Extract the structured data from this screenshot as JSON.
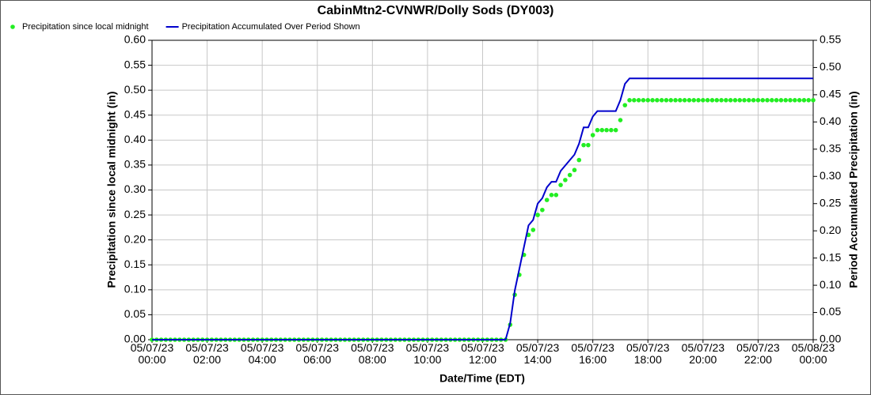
{
  "chart_data": {
    "type": "line",
    "title": "CabinMtn2-CVNWR/Dolly Sods (DY003)",
    "xlabel": "Date/Time (EDT)",
    "ylabel": "Precipitation since local midnight (in)",
    "y2label": "Period Accumulated Precipitation (in)",
    "grid": true,
    "legend": "top-left",
    "xlim": [
      0,
      1440
    ],
    "xticks": [
      {
        "value": 0,
        "label": "05/07/23\n00:00"
      },
      {
        "value": 120,
        "label": "05/07/23\n02:00"
      },
      {
        "value": 240,
        "label": "05/07/23\n04:00"
      },
      {
        "value": 360,
        "label": "05/07/23\n06:00"
      },
      {
        "value": 480,
        "label": "05/07/23\n08:00"
      },
      {
        "value": 600,
        "label": "05/07/23\n10:00"
      },
      {
        "value": 720,
        "label": "05/07/23\n12:00"
      },
      {
        "value": 840,
        "label": "05/07/23\n14:00"
      },
      {
        "value": 960,
        "label": "05/07/23\n16:00"
      },
      {
        "value": 1080,
        "label": "05/07/23\n18:00"
      },
      {
        "value": 1200,
        "label": "05/07/23\n20:00"
      },
      {
        "value": 1320,
        "label": "05/07/23\n22:00"
      },
      {
        "value": 1440,
        "label": "05/08/23\n00:00"
      }
    ],
    "ylim": [
      0,
      0.6
    ],
    "yticks": [
      {
        "value": 0,
        "label": "0.00"
      },
      {
        "value": 0.05,
        "label": "0.05"
      },
      {
        "value": 0.1,
        "label": "0.10"
      },
      {
        "value": 0.15,
        "label": "0.15"
      },
      {
        "value": 0.2,
        "label": "0.20"
      },
      {
        "value": 0.25,
        "label": "0.25"
      },
      {
        "value": 0.3,
        "label": "0.30"
      },
      {
        "value": 0.35,
        "label": "0.35"
      },
      {
        "value": 0.4,
        "label": "0.40"
      },
      {
        "value": 0.45,
        "label": "0.45"
      },
      {
        "value": 0.5,
        "label": "0.50"
      },
      {
        "value": 0.55,
        "label": "0.55"
      },
      {
        "value": 0.6,
        "label": "0.60"
      }
    ],
    "y2lim": [
      0,
      0.55
    ],
    "y2ticks": [
      {
        "value": 0,
        "label": "0.00"
      },
      {
        "value": 0.05,
        "label": "0.05"
      },
      {
        "value": 0.1,
        "label": "0.10"
      },
      {
        "value": 0.15,
        "label": "0.15"
      },
      {
        "value": 0.2,
        "label": "0.20"
      },
      {
        "value": 0.25,
        "label": "0.25"
      },
      {
        "value": 0.3,
        "label": "0.30"
      },
      {
        "value": 0.35,
        "label": "0.35"
      },
      {
        "value": 0.4,
        "label": "0.40"
      },
      {
        "value": 0.45,
        "label": "0.45"
      },
      {
        "value": 0.5,
        "label": "0.50"
      },
      {
        "value": 0.55,
        "label": "0.55"
      }
    ],
    "x": [
      0,
      10,
      20,
      30,
      40,
      50,
      60,
      70,
      80,
      90,
      100,
      110,
      120,
      130,
      140,
      150,
      160,
      170,
      180,
      190,
      200,
      210,
      220,
      230,
      240,
      250,
      260,
      270,
      280,
      290,
      300,
      310,
      320,
      330,
      340,
      350,
      360,
      370,
      380,
      390,
      400,
      410,
      420,
      430,
      440,
      450,
      460,
      470,
      480,
      490,
      500,
      510,
      520,
      530,
      540,
      550,
      560,
      570,
      580,
      590,
      600,
      610,
      620,
      630,
      640,
      650,
      660,
      670,
      680,
      690,
      700,
      710,
      720,
      730,
      740,
      750,
      760,
      770,
      780,
      790,
      800,
      810,
      820,
      830,
      840,
      850,
      860,
      870,
      880,
      890,
      900,
      910,
      920,
      930,
      940,
      950,
      960,
      970,
      980,
      990,
      1000,
      1010,
      1020,
      1030,
      1040,
      1050,
      1060,
      1070,
      1080,
      1090,
      1100,
      1110,
      1120,
      1130,
      1140,
      1150,
      1160,
      1170,
      1180,
      1190,
      1200,
      1210,
      1220,
      1230,
      1240,
      1250,
      1260,
      1270,
      1280,
      1290,
      1300,
      1310,
      1320,
      1330,
      1340,
      1350,
      1360,
      1370,
      1380,
      1390,
      1400,
      1410,
      1420,
      1430,
      1440
    ],
    "series": [
      {
        "name": "Precipitation since local midnight",
        "color": "#22ee22",
        "marker": "dot",
        "axis": "y",
        "values": [
          0,
          0,
          0,
          0,
          0,
          0,
          0,
          0,
          0,
          0,
          0,
          0,
          0,
          0,
          0,
          0,
          0,
          0,
          0,
          0,
          0,
          0,
          0,
          0,
          0,
          0,
          0,
          0,
          0,
          0,
          0,
          0,
          0,
          0,
          0,
          0,
          0,
          0,
          0,
          0,
          0,
          0,
          0,
          0,
          0,
          0,
          0,
          0,
          0,
          0,
          0,
          0,
          0,
          0,
          0,
          0,
          0,
          0,
          0,
          0,
          0,
          0,
          0,
          0,
          0,
          0,
          0,
          0,
          0,
          0,
          0,
          0,
          0,
          0,
          0,
          0,
          0,
          0,
          0.03,
          0.09,
          0.13,
          0.17,
          0.21,
          0.22,
          0.25,
          0.26,
          0.28,
          0.29,
          0.29,
          0.31,
          0.32,
          0.33,
          0.34,
          0.36,
          0.39,
          0.39,
          0.41,
          0.42,
          0.42,
          0.42,
          0.42,
          0.42,
          0.44,
          0.47,
          0.48,
          0.48,
          0.48,
          0.48,
          0.48,
          0.48,
          0.48,
          0.48,
          0.48,
          0.48,
          0.48,
          0.48,
          0.48,
          0.48,
          0.48,
          0.48,
          0.48,
          0.48,
          0.48,
          0.48,
          0.48,
          0.48,
          0.48,
          0.48,
          0.48,
          0.48,
          0.48,
          0.48,
          0.48,
          0.48,
          0.48,
          0.48,
          0.48,
          0.48,
          0.48,
          0.48,
          0.48,
          0.48,
          0.48,
          0.48,
          0.48
        ]
      },
      {
        "name": "Precipitation Accumulated Over Period Shown",
        "color": "#0000cc",
        "marker": "line",
        "axis": "y2",
        "values": [
          0,
          0,
          0,
          0,
          0,
          0,
          0,
          0,
          0,
          0,
          0,
          0,
          0,
          0,
          0,
          0,
          0,
          0,
          0,
          0,
          0,
          0,
          0,
          0,
          0,
          0,
          0,
          0,
          0,
          0,
          0,
          0,
          0,
          0,
          0,
          0,
          0,
          0,
          0,
          0,
          0,
          0,
          0,
          0,
          0,
          0,
          0,
          0,
          0,
          0,
          0,
          0,
          0,
          0,
          0,
          0,
          0,
          0,
          0,
          0,
          0,
          0,
          0,
          0,
          0,
          0,
          0,
          0,
          0,
          0,
          0,
          0,
          0,
          0,
          0,
          0,
          0,
          0,
          0.03,
          0.09,
          0.13,
          0.17,
          0.21,
          0.22,
          0.25,
          0.26,
          0.28,
          0.29,
          0.29,
          0.31,
          0.32,
          0.33,
          0.34,
          0.36,
          0.39,
          0.39,
          0.41,
          0.42,
          0.42,
          0.42,
          0.42,
          0.42,
          0.44,
          0.47,
          0.48,
          0.48,
          0.48,
          0.48,
          0.48,
          0.48,
          0.48,
          0.48,
          0.48,
          0.48,
          0.48,
          0.48,
          0.48,
          0.48,
          0.48,
          0.48,
          0.48,
          0.48,
          0.48,
          0.48,
          0.48,
          0.48,
          0.48,
          0.48,
          0.48,
          0.48,
          0.48,
          0.48,
          0.48,
          0.48,
          0.48,
          0.48,
          0.48,
          0.48,
          0.48,
          0.48,
          0.48,
          0.48,
          0.48,
          0.48,
          0.48
        ]
      }
    ]
  }
}
